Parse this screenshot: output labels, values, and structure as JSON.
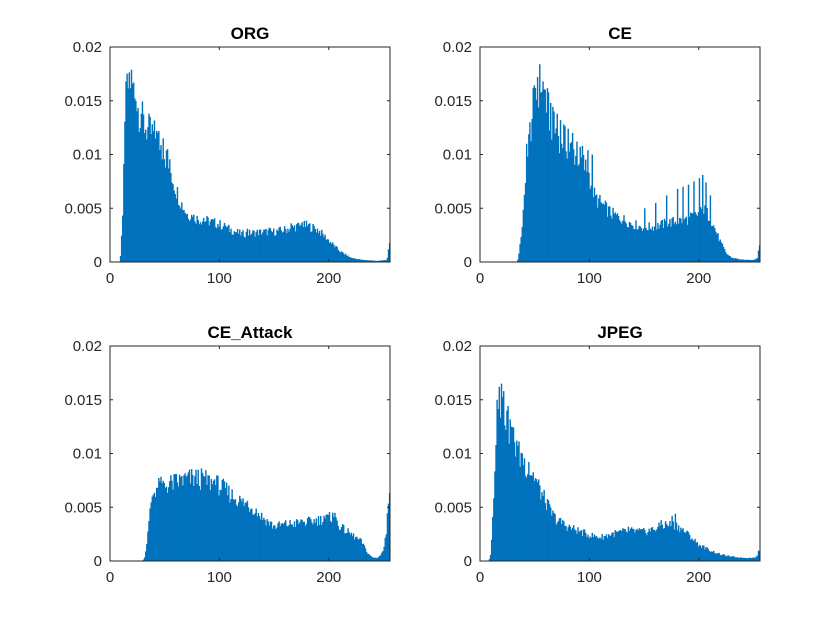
{
  "chart_data": [
    {
      "type": "bar",
      "title": "ORG",
      "xlim": [
        0,
        256
      ],
      "ylim": [
        0,
        0.02
      ],
      "xticks": [
        0,
        100,
        200
      ],
      "yticks": [
        0,
        0.005,
        0.01,
        0.015,
        0.02
      ],
      "xtick_labels": [
        "0",
        "100",
        "200"
      ],
      "ytick_labels": [
        "0",
        "0.005",
        "0.01",
        "0.015",
        "0.02"
      ],
      "bar_color": "#0072BD",
      "grid": false,
      "profile": [
        [
          0,
          0
        ],
        [
          9,
          0
        ],
        [
          10,
          0.001
        ],
        [
          12,
          0.006
        ],
        [
          14,
          0.014
        ],
        [
          16,
          0.0162
        ],
        [
          18,
          0.0172
        ],
        [
          20,
          0.0165
        ],
        [
          22,
          0.0158
        ],
        [
          25,
          0.0145
        ],
        [
          30,
          0.013
        ],
        [
          35,
          0.0122
        ],
        [
          40,
          0.0118
        ],
        [
          45,
          0.0112
        ],
        [
          50,
          0.01
        ],
        [
          55,
          0.0085
        ],
        [
          60,
          0.0068
        ],
        [
          65,
          0.0055
        ],
        [
          70,
          0.0045
        ],
        [
          80,
          0.004
        ],
        [
          90,
          0.0038
        ],
        [
          100,
          0.0035
        ],
        [
          110,
          0.003
        ],
        [
          120,
          0.0026
        ],
        [
          130,
          0.0027
        ],
        [
          140,
          0.0028
        ],
        [
          150,
          0.0028
        ],
        [
          160,
          0.003
        ],
        [
          170,
          0.0033
        ],
        [
          180,
          0.0034
        ],
        [
          190,
          0.003
        ],
        [
          200,
          0.002
        ],
        [
          210,
          0.001
        ],
        [
          220,
          0.0004
        ],
        [
          230,
          0.0002
        ],
        [
          245,
          0.0001
        ],
        [
          253,
          0.0002
        ],
        [
          254,
          0.0005
        ],
        [
          255,
          0.0016
        ]
      ],
      "spikes": [
        [
          14,
          0.0168
        ],
        [
          17,
          0.0176
        ],
        [
          19,
          0.017
        ],
        [
          23,
          0.015
        ],
        [
          28,
          0.0138
        ],
        [
          38,
          0.0125
        ],
        [
          42,
          0.0122
        ],
        [
          48,
          0.0115
        ],
        [
          52,
          0.0105
        ],
        [
          75,
          0.0042
        ],
        [
          85,
          0.0041
        ],
        [
          95,
          0.004
        ],
        [
          105,
          0.0034
        ],
        [
          125,
          0.0031
        ],
        [
          145,
          0.0032
        ],
        [
          165,
          0.0036
        ],
        [
          175,
          0.0037
        ],
        [
          182,
          0.0035
        ]
      ]
    },
    {
      "type": "bar",
      "title": "CE",
      "xlim": [
        0,
        256
      ],
      "ylim": [
        0,
        0.02
      ],
      "xticks": [
        0,
        100,
        200
      ],
      "yticks": [
        0,
        0.005,
        0.01,
        0.015,
        0.02
      ],
      "xtick_labels": [
        "0",
        "100",
        "200"
      ],
      "ytick_labels": [
        "0",
        "0.005",
        "0.01",
        "0.015",
        "0.02"
      ],
      "bar_color": "#0072BD",
      "grid": false,
      "profile": [
        [
          0,
          0
        ],
        [
          34,
          0
        ],
        [
          36,
          0.001
        ],
        [
          40,
          0.005
        ],
        [
          44,
          0.0105
        ],
        [
          48,
          0.014
        ],
        [
          52,
          0.016
        ],
        [
          56,
          0.0168
        ],
        [
          60,
          0.015
        ],
        [
          65,
          0.013
        ],
        [
          70,
          0.012
        ],
        [
          75,
          0.0115
        ],
        [
          80,
          0.0108
        ],
        [
          85,
          0.0102
        ],
        [
          90,
          0.0098
        ],
        [
          95,
          0.009
        ],
        [
          100,
          0.008
        ],
        [
          105,
          0.006
        ],
        [
          110,
          0.0055
        ],
        [
          115,
          0.005
        ],
        [
          120,
          0.0045
        ],
        [
          130,
          0.004
        ],
        [
          140,
          0.0035
        ],
        [
          150,
          0.0032
        ],
        [
          160,
          0.0033
        ],
        [
          170,
          0.0036
        ],
        [
          180,
          0.0038
        ],
        [
          190,
          0.004
        ],
        [
          195,
          0.0042
        ],
        [
          200,
          0.0045
        ],
        [
          205,
          0.0048
        ],
        [
          210,
          0.0042
        ],
        [
          215,
          0.003
        ],
        [
          220,
          0.0018
        ],
        [
          225,
          0.0008
        ],
        [
          230,
          0.0004
        ],
        [
          240,
          0.0002
        ],
        [
          250,
          0.0002
        ],
        [
          254,
          0.0004
        ],
        [
          255,
          0.0018
        ]
      ],
      "spikes": [
        [
          42,
          0.011
        ],
        [
          45,
          0.013
        ],
        [
          48,
          0.0152
        ],
        [
          50,
          0.0162
        ],
        [
          52,
          0.0172
        ],
        [
          54,
          0.0176
        ],
        [
          57,
          0.0168
        ],
        [
          59,
          0.016
        ],
        [
          62,
          0.0152
        ],
        [
          64,
          0.0148
        ],
        [
          67,
          0.014
        ],
        [
          70,
          0.0138
        ],
        [
          73,
          0.0132
        ],
        [
          76,
          0.0128
        ],
        [
          80,
          0.0124
        ],
        [
          84,
          0.012
        ],
        [
          88,
          0.0112
        ],
        [
          93,
          0.0108
        ],
        [
          98,
          0.0104
        ],
        [
          102,
          0.01
        ],
        [
          150,
          0.005
        ],
        [
          160,
          0.0055
        ],
        [
          170,
          0.0062
        ],
        [
          180,
          0.0068
        ],
        [
          185,
          0.007
        ],
        [
          190,
          0.0072
        ],
        [
          195,
          0.0075
        ],
        [
          200,
          0.0078
        ],
        [
          203,
          0.0081
        ],
        [
          206,
          0.0074
        ],
        [
          210,
          0.0062
        ]
      ]
    },
    {
      "type": "bar",
      "title": "CE_Attack",
      "xlim": [
        0,
        256
      ],
      "ylim": [
        0,
        0.02
      ],
      "xticks": [
        0,
        100,
        200
      ],
      "yticks": [
        0,
        0.005,
        0.01,
        0.015,
        0.02
      ],
      "xtick_labels": [
        "0",
        "100",
        "200"
      ],
      "ytick_labels": [
        "0",
        "0.005",
        "0.01",
        "0.015",
        "0.02"
      ],
      "bar_color": "#0072BD",
      "grid": false,
      "profile": [
        [
          0,
          0
        ],
        [
          30,
          0
        ],
        [
          32,
          0.0005
        ],
        [
          35,
          0.003
        ],
        [
          38,
          0.006
        ],
        [
          42,
          0.0068
        ],
        [
          50,
          0.007
        ],
        [
          60,
          0.0073
        ],
        [
          70,
          0.0076
        ],
        [
          80,
          0.0077
        ],
        [
          90,
          0.0074
        ],
        [
          100,
          0.007
        ],
        [
          110,
          0.0062
        ],
        [
          120,
          0.0055
        ],
        [
          130,
          0.005
        ],
        [
          140,
          0.004
        ],
        [
          150,
          0.0032
        ],
        [
          160,
          0.0034
        ],
        [
          170,
          0.0035
        ],
        [
          180,
          0.0036
        ],
        [
          190,
          0.0038
        ],
        [
          200,
          0.004
        ],
        [
          205,
          0.0042
        ],
        [
          210,
          0.0032
        ],
        [
          220,
          0.0025
        ],
        [
          230,
          0.0018
        ],
        [
          235,
          0.0008
        ],
        [
          240,
          0.0003
        ],
        [
          245,
          0.0003
        ],
        [
          250,
          0.001
        ],
        [
          253,
          0.003
        ],
        [
          255,
          0.0068
        ]
      ],
      "spikes": [
        [
          45,
          0.0074
        ],
        [
          55,
          0.0075
        ],
        [
          65,
          0.0079
        ],
        [
          75,
          0.008
        ],
        [
          85,
          0.0079
        ],
        [
          95,
          0.0076
        ],
        [
          105,
          0.0068
        ],
        [
          125,
          0.0056
        ],
        [
          175,
          0.0038
        ],
        [
          195,
          0.0042
        ],
        [
          203,
          0.0045
        ]
      ]
    },
    {
      "type": "bar",
      "title": "JPEG",
      "xlim": [
        0,
        256
      ],
      "ylim": [
        0,
        0.02
      ],
      "xticks": [
        0,
        100,
        200
      ],
      "yticks": [
        0,
        0.005,
        0.01,
        0.015,
        0.02
      ],
      "xtick_labels": [
        "0",
        "100",
        "200"
      ],
      "ytick_labels": [
        "0",
        "0.005",
        "0.01",
        "0.015",
        "0.02"
      ],
      "bar_color": "#0072BD",
      "grid": false,
      "profile": [
        [
          0,
          0
        ],
        [
          8,
          0
        ],
        [
          10,
          0.0008
        ],
        [
          12,
          0.005
        ],
        [
          14,
          0.011
        ],
        [
          16,
          0.014
        ],
        [
          18,
          0.0155
        ],
        [
          20,
          0.015
        ],
        [
          22,
          0.014
        ],
        [
          25,
          0.0128
        ],
        [
          30,
          0.0115
        ],
        [
          35,
          0.01
        ],
        [
          40,
          0.0092
        ],
        [
          45,
          0.0085
        ],
        [
          50,
          0.0078
        ],
        [
          55,
          0.0065
        ],
        [
          60,
          0.0055
        ],
        [
          65,
          0.0045
        ],
        [
          70,
          0.0038
        ],
        [
          80,
          0.0032
        ],
        [
          90,
          0.0028
        ],
        [
          100,
          0.0024
        ],
        [
          110,
          0.0022
        ],
        [
          120,
          0.0025
        ],
        [
          130,
          0.0027
        ],
        [
          140,
          0.0028
        ],
        [
          150,
          0.0027
        ],
        [
          160,
          0.003
        ],
        [
          170,
          0.0034
        ],
        [
          180,
          0.0033
        ],
        [
          190,
          0.0025
        ],
        [
          200,
          0.0015
        ],
        [
          210,
          0.001
        ],
        [
          220,
          0.0006
        ],
        [
          230,
          0.0004
        ],
        [
          240,
          0.0003
        ],
        [
          250,
          0.0003
        ],
        [
          253,
          0.0004
        ],
        [
          255,
          0.001
        ]
      ],
      "spikes": [
        [
          15,
          0.015
        ],
        [
          17,
          0.0162
        ],
        [
          19,
          0.0165
        ],
        [
          21,
          0.0158
        ],
        [
          24,
          0.014
        ],
        [
          28,
          0.0125
        ],
        [
          33,
          0.0112
        ],
        [
          38,
          0.01
        ],
        [
          44,
          0.0092
        ],
        [
          75,
          0.0038
        ],
        [
          135,
          0.0032
        ],
        [
          165,
          0.0038
        ],
        [
          175,
          0.0042
        ],
        [
          178,
          0.0044
        ]
      ]
    }
  ]
}
